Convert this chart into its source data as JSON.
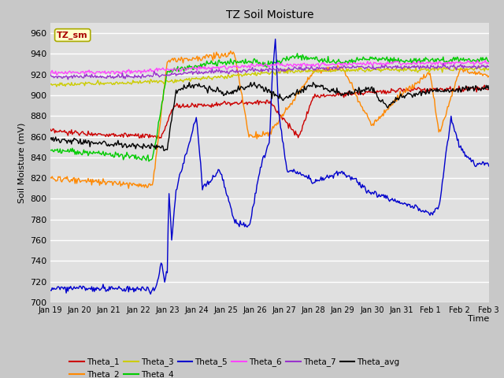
{
  "title": "TZ Soil Moisture",
  "xlabel": "Time",
  "ylabel": "Soil Moisture (mV)",
  "ylim": [
    700,
    970
  ],
  "yticks": [
    700,
    720,
    740,
    760,
    780,
    800,
    820,
    840,
    860,
    880,
    900,
    920,
    940,
    960
  ],
  "tick_labels": [
    "Jan 19",
    "Jan 20",
    "Jan 21",
    "Jan 22",
    "Jan 23",
    "Jan 24",
    "Jan 25",
    "Jan 26",
    "Jan 27",
    "Jan 28",
    "Jan 29",
    "Jan 30",
    "Jan 31",
    "Feb 1",
    "Feb 2",
    "Feb 3"
  ],
  "series_colors": {
    "Theta_1": "#cc0000",
    "Theta_2": "#ff8800",
    "Theta_3": "#cccc00",
    "Theta_4": "#00cc00",
    "Theta_5": "#0000cc",
    "Theta_6": "#ff44ff",
    "Theta_7": "#9933cc",
    "Theta_avg": "#000000"
  },
  "fig_bg": "#c8c8c8",
  "ax_bg": "#e0e0e0",
  "grid_color": "#ffffff",
  "lw": 1.0,
  "figsize": [
    6.4,
    4.8
  ],
  "dpi": 100
}
